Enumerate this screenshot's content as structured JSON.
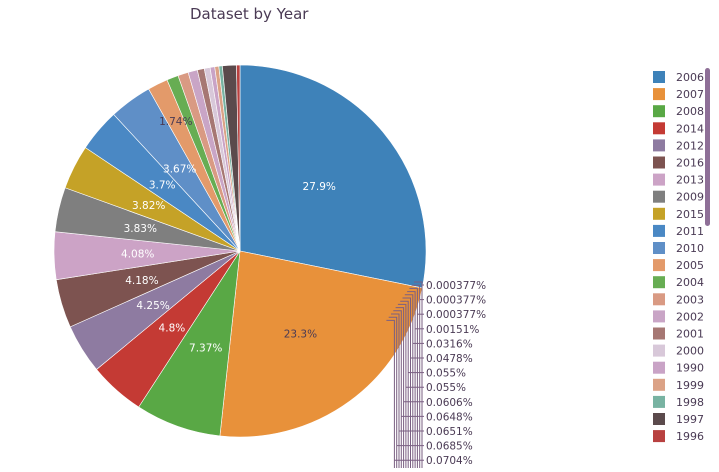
{
  "chart_data": {
    "type": "pie",
    "title": "Dataset by Year",
    "legend_position": "right",
    "slices": [
      {
        "label": "2006",
        "value": 27.9,
        "text": "27.9%",
        "color": "#3e82b9"
      },
      {
        "label": "2007",
        "value": 23.3,
        "text": "23.3%",
        "color": "#e8913a"
      },
      {
        "label": "2008",
        "value": 7.37,
        "text": "7.37%",
        "color": "#59a845"
      },
      {
        "label": "2014",
        "value": 4.8,
        "text": "4.8%",
        "color": "#c43a34"
      },
      {
        "label": "2012",
        "value": 4.25,
        "text": "4.25%",
        "color": "#8e7ba1"
      },
      {
        "label": "2016",
        "value": 4.18,
        "text": "4.18%",
        "color": "#7d5350"
      },
      {
        "label": "2013",
        "value": 4.08,
        "text": "4.08%",
        "color": "#cca3c6"
      },
      {
        "label": "2009",
        "value": 3.83,
        "text": "3.83%",
        "color": "#7f7f7f"
      },
      {
        "label": "2015",
        "value": 3.82,
        "text": "3.82%",
        "color": "#c5a227"
      },
      {
        "label": "2011",
        "value": 3.7,
        "text": "3.7%",
        "color": "#4a88c4"
      },
      {
        "label": "2010",
        "value": 3.67,
        "text": "3.67%",
        "color": "#5f8fc7"
      },
      {
        "label": "2005",
        "value": 1.74,
        "text": "1.74%",
        "color": "#e39a6a"
      },
      {
        "label": "2004",
        "value": 1.0,
        "text": "",
        "color": "#67ad53"
      },
      {
        "label": "2003",
        "value": 0.9,
        "text": "",
        "color": "#d99a83"
      },
      {
        "label": "2002",
        "value": 0.8,
        "text": "",
        "color": "#c9a5c6"
      },
      {
        "label": "2001",
        "value": 0.6,
        "text": "",
        "color": "#a67773"
      },
      {
        "label": "2000",
        "value": 0.5,
        "text": "",
        "color": "#d8c8d9"
      },
      {
        "label": "1990",
        "value": 0.4,
        "text": "",
        "color": "#c9a3c6"
      },
      {
        "label": "1999",
        "value": 0.35,
        "text": "",
        "color": "#dba286"
      },
      {
        "label": "1998",
        "value": 0.3,
        "text": "",
        "color": "#78b3a2"
      },
      {
        "label": "1997",
        "value": 1.2,
        "text": "",
        "color": "#5b4a4c"
      },
      {
        "label": "1996",
        "value": 0.3,
        "text": "",
        "color": "#b84140"
      }
    ],
    "outside_labels": [
      "0.000377%",
      "0.000377%",
      "0.000377%",
      "0.00151%",
      "0.0316%",
      "0.0478%",
      "0.055%",
      "0.055%",
      "0.0606%",
      "0.0648%",
      "0.0651%",
      "0.0685%",
      "0.0704%"
    ]
  }
}
